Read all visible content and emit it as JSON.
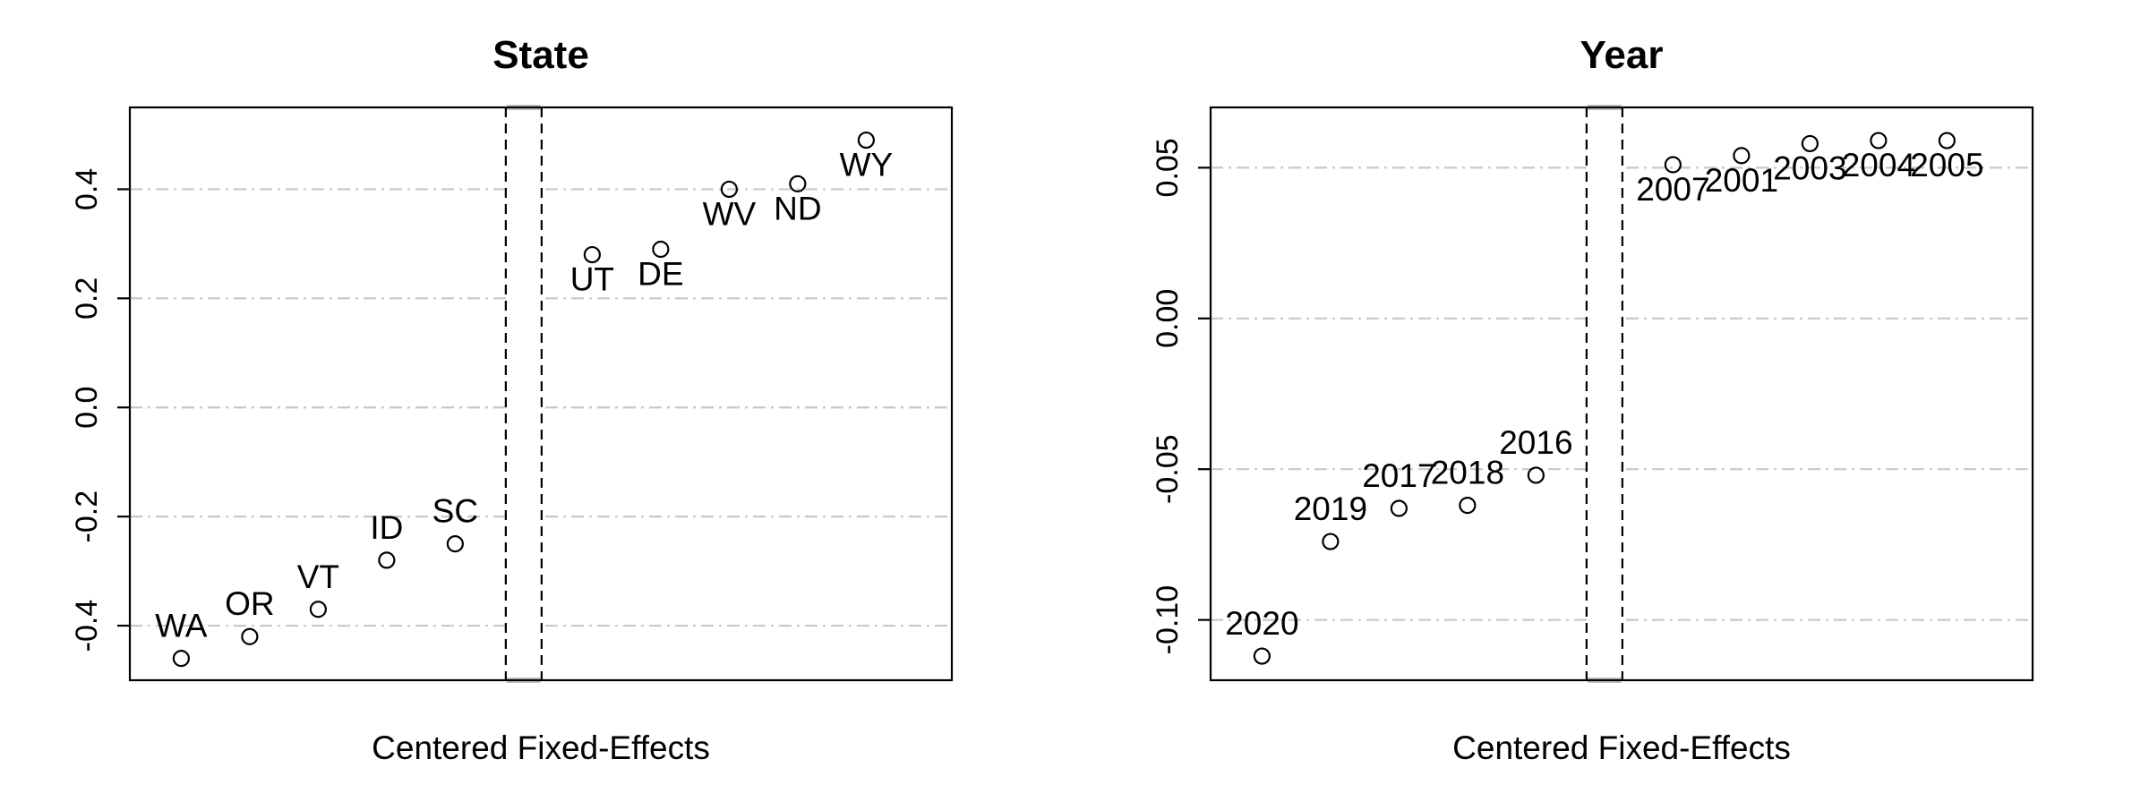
{
  "chart_data": [
    {
      "type": "scatter",
      "title": "State",
      "xlabel": "Centered Fixed-Effects",
      "ylabel": "",
      "ylim": [
        -0.5,
        0.55
      ],
      "yticks": [
        -0.4,
        -0.2,
        0.0,
        0.2,
        0.4
      ],
      "ytick_labels": [
        "-0.4",
        "-0.2",
        "0.0",
        "0.2",
        "0.4"
      ],
      "grid": true,
      "break_after_index": 4,
      "points": [
        {
          "label": "WA",
          "y": -0.46,
          "label_pos": "above"
        },
        {
          "label": "OR",
          "y": -0.42,
          "label_pos": "above"
        },
        {
          "label": "VT",
          "y": -0.37,
          "label_pos": "above"
        },
        {
          "label": "ID",
          "y": -0.28,
          "label_pos": "above"
        },
        {
          "label": "SC",
          "y": -0.25,
          "label_pos": "above"
        },
        {
          "label": "UT",
          "y": 0.28,
          "label_pos": "below"
        },
        {
          "label": "DE",
          "y": 0.29,
          "label_pos": "below"
        },
        {
          "label": "WV",
          "y": 0.4,
          "label_pos": "below"
        },
        {
          "label": "ND",
          "y": 0.41,
          "label_pos": "below"
        },
        {
          "label": "WY",
          "y": 0.49,
          "label_pos": "below"
        }
      ]
    },
    {
      "type": "scatter",
      "title": "Year",
      "xlabel": "Centered Fixed-Effects",
      "ylabel": "",
      "ylim": [
        -0.12,
        0.07
      ],
      "yticks": [
        -0.1,
        -0.05,
        0.0,
        0.05
      ],
      "ytick_labels": [
        "-0.10",
        "-0.05",
        "0.00",
        "0.05"
      ],
      "grid": true,
      "break_after_index": 4,
      "points": [
        {
          "label": "2020",
          "y": -0.112,
          "label_pos": "above"
        },
        {
          "label": "2019",
          "y": -0.074,
          "label_pos": "above"
        },
        {
          "label": "2017",
          "y": -0.063,
          "label_pos": "above"
        },
        {
          "label": "2018",
          "y": -0.062,
          "label_pos": "above"
        },
        {
          "label": "2016",
          "y": -0.052,
          "label_pos": "above"
        },
        {
          "label": "2007",
          "y": 0.051,
          "label_pos": "below"
        },
        {
          "label": "2001",
          "y": 0.054,
          "label_pos": "below"
        },
        {
          "label": "2003",
          "y": 0.058,
          "label_pos": "below"
        },
        {
          "label": "2004",
          "y": 0.059,
          "label_pos": "below"
        },
        {
          "label": "2005",
          "y": 0.059,
          "label_pos": "below"
        }
      ]
    }
  ]
}
